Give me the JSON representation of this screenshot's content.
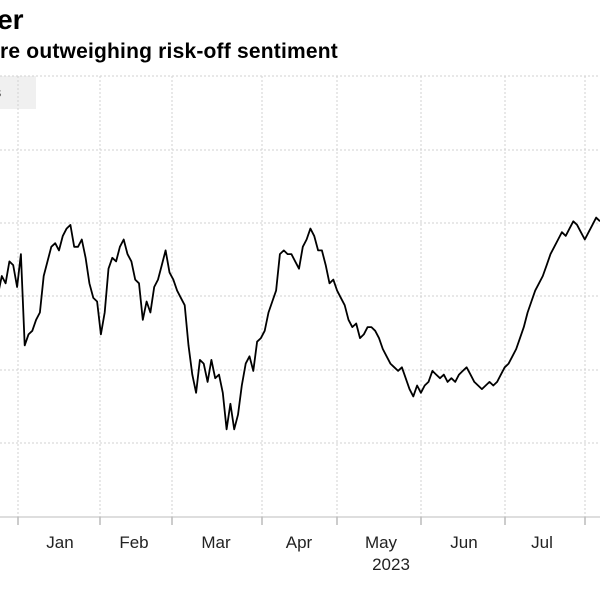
{
  "header": {
    "title": "her",
    "subtitle": "re outweighing risk-off sentiment"
  },
  "legend": {
    "label": "ures"
  },
  "chart_data": {
    "type": "line",
    "title": "her",
    "subtitle": "re outweighing risk-off sentiment",
    "xlabel": "2023",
    "ylabel": "",
    "grid": true,
    "x_tick_labels": [
      "Jan",
      "Feb",
      "Mar",
      "Apr",
      "May",
      "Jun",
      "Jul"
    ],
    "year_label": "2023",
    "series": [
      {
        "name": "ures",
        "values": [
          55,
          60,
          58,
          64,
          63,
          57,
          66,
          41,
          44,
          45,
          48,
          50,
          60,
          64,
          68,
          69,
          67,
          71,
          73,
          74,
          68,
          68,
          70,
          65,
          58,
          54,
          53,
          44,
          50,
          62,
          65,
          64,
          68,
          70,
          66,
          64,
          59,
          58,
          48,
          53,
          50,
          57,
          59,
          63,
          67,
          61,
          59,
          56,
          54,
          52,
          41,
          33,
          28,
          37,
          36,
          31,
          37,
          32,
          33,
          28,
          18,
          25,
          18,
          22,
          30,
          36,
          38,
          34,
          42,
          43,
          45,
          50,
          53,
          56,
          66,
          67,
          66,
          66,
          64,
          62,
          68,
          70,
          73,
          71,
          67,
          67,
          63,
          58,
          59,
          56,
          54,
          52,
          48,
          46,
          47,
          43,
          44,
          46,
          46,
          45,
          43,
          40,
          38,
          36,
          35,
          34,
          35,
          32,
          29,
          27,
          30,
          28,
          30,
          31,
          34,
          33,
          32,
          33,
          31,
          32,
          31,
          33,
          34,
          35,
          33,
          31,
          30,
          29,
          30,
          31,
          30,
          31,
          33,
          35,
          36,
          38,
          40,
          43,
          46,
          50,
          53,
          56,
          58,
          60,
          63,
          66,
          68,
          70,
          72,
          71,
          73,
          75,
          74,
          72,
          70,
          72,
          74,
          76,
          75
        ]
      }
    ],
    "ylim": [
      0,
      100
    ]
  }
}
